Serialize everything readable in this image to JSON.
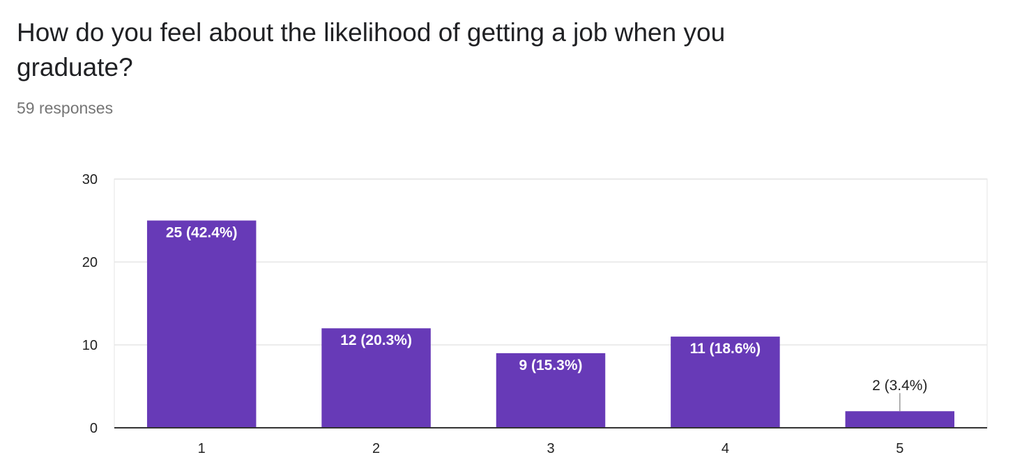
{
  "question": {
    "title": "How do you feel about the likelihood of getting a job when you graduate?",
    "responses": "59 responses"
  },
  "chart_data": {
    "type": "bar",
    "categories": [
      "1",
      "2",
      "3",
      "4",
      "5"
    ],
    "values": [
      25,
      12,
      9,
      11,
      2
    ],
    "data_labels": [
      "25 (42.4%)",
      "12 (20.3%)",
      "9 (15.3%)",
      "11 (18.6%)",
      "2 (3.4%)"
    ],
    "ylim": [
      0,
      30
    ],
    "yticks": [
      0,
      10,
      20,
      30
    ],
    "grid": true,
    "legend": "none",
    "bar_color": "#673ab7"
  }
}
